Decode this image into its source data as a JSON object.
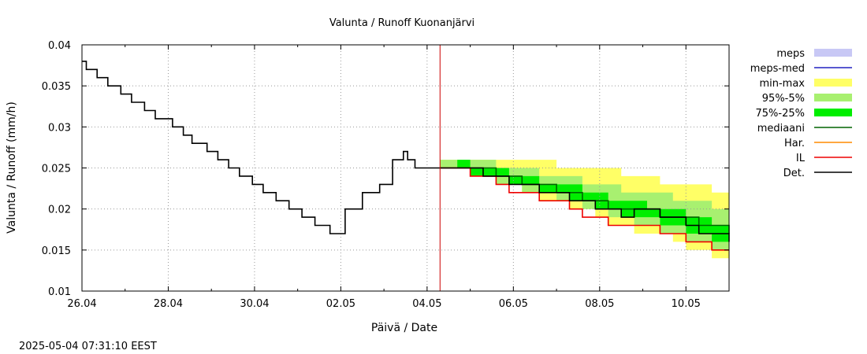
{
  "colors": {
    "meps": "#c8c8f5",
    "meps_med": "#2020c0",
    "min_max": "#ffff66",
    "p95_5": "#a8f070",
    "p75_25": "#00ee00",
    "median": "#006400",
    "har": "#ff8c00",
    "il": "#ee0000",
    "det": "#000000",
    "now_line": "#cc0000",
    "grid": "#999999"
  },
  "chart_data": {
    "type": "line",
    "title": "Valunta / Runoff  Kuonanjärvi",
    "xlabel": "Päivä / Date",
    "ylabel": "Valunta / Runoff (mm/h)",
    "timestamp": "2025-05-04 07:31:10 EEST",
    "x_unit": "days since 26.04 00:00",
    "xlim": [
      0,
      15
    ],
    "ylim": [
      0.01,
      0.04
    ],
    "x_ticks": [
      {
        "x": 0,
        "label": "26.04"
      },
      {
        "x": 2,
        "label": "28.04"
      },
      {
        "x": 4,
        "label": "30.04"
      },
      {
        "x": 6,
        "label": "02.05"
      },
      {
        "x": 8,
        "label": "04.05"
      },
      {
        "x": 10,
        "label": "06.05"
      },
      {
        "x": 12,
        "label": "08.05"
      },
      {
        "x": 14,
        "label": "10.05"
      }
    ],
    "y_ticks": [
      {
        "y": 0.01,
        "label": "0.01"
      },
      {
        "y": 0.015,
        "label": "0.015"
      },
      {
        "y": 0.02,
        "label": "0.02"
      },
      {
        "y": 0.025,
        "label": "0.025"
      },
      {
        "y": 0.03,
        "label": "0.03"
      },
      {
        "y": 0.035,
        "label": "0.035"
      },
      {
        "y": 0.04,
        "label": "0.04"
      }
    ],
    "now_x": 8.3,
    "legend": [
      {
        "key": "meps",
        "label": "meps",
        "style": "box"
      },
      {
        "key": "meps_med",
        "label": "meps-med",
        "style": "line"
      },
      {
        "key": "min_max",
        "label": "min-max",
        "style": "box"
      },
      {
        "key": "p95_5",
        "label": "95%-5%",
        "style": "box"
      },
      {
        "key": "p75_25",
        "label": "75%-25%",
        "style": "box"
      },
      {
        "key": "median",
        "label": "mediaani",
        "style": "line"
      },
      {
        "key": "har",
        "label": "Har.",
        "style": "line"
      },
      {
        "key": "il",
        "label": "IL",
        "style": "line"
      },
      {
        "key": "det",
        "label": "Det.",
        "style": "line"
      }
    ],
    "det": {
      "x": [
        0,
        0.05,
        0.1,
        0.35,
        0.6,
        0.9,
        1.15,
        1.45,
        1.7,
        1.9,
        2.1,
        2.35,
        2.55,
        2.7,
        2.9,
        3.15,
        3.4,
        3.65,
        3.95,
        4.2,
        4.5,
        4.8,
        5.1,
        5.4,
        5.75,
        6.1,
        6.5,
        6.9,
        7.2,
        7.45,
        7.55,
        7.62,
        7.72,
        7.78,
        7.9,
        8.0,
        8.05,
        8.1,
        8.3
      ],
      "y": [
        0.038,
        0.038,
        0.037,
        0.036,
        0.035,
        0.034,
        0.033,
        0.032,
        0.031,
        0.031,
        0.03,
        0.029,
        0.028,
        0.028,
        0.027,
        0.026,
        0.025,
        0.024,
        0.023,
        0.022,
        0.021,
        0.02,
        0.019,
        0.018,
        0.017,
        0.02,
        0.022,
        0.023,
        0.026,
        0.027,
        0.026,
        0.026,
        0.025,
        0.025,
        0.025,
        0.025,
        0.025,
        0.025,
        0.025
      ]
    },
    "forecast": {
      "x": [
        8.3,
        8.7,
        9.0,
        9.3,
        9.6,
        9.9,
        10.2,
        10.6,
        11.0,
        11.3,
        11.6,
        11.9,
        12.2,
        12.5,
        12.8,
        13.1,
        13.4,
        13.7,
        14.0,
        14.3,
        14.6,
        15.0
      ],
      "det": [
        0.025,
        0.025,
        0.025,
        0.024,
        0.024,
        0.023,
        0.023,
        0.022,
        0.022,
        0.021,
        0.021,
        0.02,
        0.02,
        0.019,
        0.02,
        0.02,
        0.019,
        0.019,
        0.018,
        0.017,
        0.017,
        0.016
      ],
      "median": [
        0.025,
        0.025,
        0.025,
        0.025,
        0.024,
        0.024,
        0.023,
        0.023,
        0.022,
        0.022,
        0.021,
        0.021,
        0.02,
        0.02,
        0.02,
        0.02,
        0.019,
        0.019,
        0.019,
        0.018,
        0.018,
        0.017
      ],
      "il": [
        0.025,
        0.025,
        0.024,
        0.024,
        0.023,
        0.022,
        0.022,
        0.021,
        0.021,
        0.02,
        0.019,
        0.019,
        0.018,
        0.018,
        0.018,
        0.018,
        0.017,
        0.017,
        0.016,
        0.016,
        0.015,
        0.015
      ],
      "min": [
        0.025,
        0.025,
        0.024,
        0.024,
        0.023,
        0.023,
        0.022,
        0.021,
        0.021,
        0.02,
        0.02,
        0.019,
        0.018,
        0.018,
        0.017,
        0.017,
        0.017,
        0.016,
        0.015,
        0.015,
        0.014,
        0.014
      ],
      "max": [
        0.026,
        0.026,
        0.026,
        0.026,
        0.026,
        0.026,
        0.026,
        0.026,
        0.025,
        0.025,
        0.025,
        0.025,
        0.025,
        0.024,
        0.024,
        0.024,
        0.023,
        0.023,
        0.023,
        0.023,
        0.022,
        0.022
      ],
      "p5": [
        0.025,
        0.025,
        0.024,
        0.024,
        0.023,
        0.023,
        0.022,
        0.022,
        0.021,
        0.021,
        0.02,
        0.02,
        0.019,
        0.019,
        0.018,
        0.018,
        0.017,
        0.017,
        0.016,
        0.016,
        0.015,
        0.015
      ],
      "p95": [
        0.026,
        0.026,
        0.026,
        0.026,
        0.025,
        0.025,
        0.025,
        0.024,
        0.024,
        0.024,
        0.023,
        0.023,
        0.023,
        0.022,
        0.022,
        0.022,
        0.022,
        0.021,
        0.021,
        0.021,
        0.02,
        0.02
      ],
      "p25": [
        0.025,
        0.025,
        0.024,
        0.024,
        0.024,
        0.023,
        0.023,
        0.022,
        0.022,
        0.021,
        0.021,
        0.02,
        0.02,
        0.019,
        0.019,
        0.019,
        0.018,
        0.018,
        0.017,
        0.017,
        0.016,
        0.016
      ],
      "p75": [
        0.025,
        0.026,
        0.025,
        0.025,
        0.025,
        0.024,
        0.024,
        0.023,
        0.023,
        0.023,
        0.022,
        0.022,
        0.021,
        0.021,
        0.021,
        0.02,
        0.02,
        0.02,
        0.019,
        0.019,
        0.018,
        0.018
      ]
    }
  }
}
